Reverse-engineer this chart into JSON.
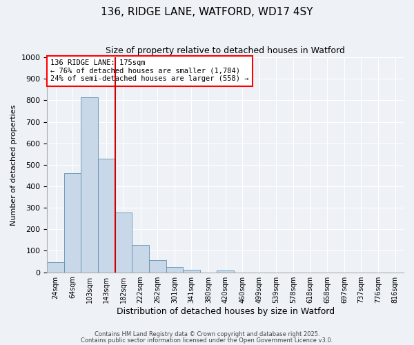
{
  "title": "136, RIDGE LANE, WATFORD, WD17 4SY",
  "subtitle": "Size of property relative to detached houses in Watford",
  "xlabel": "Distribution of detached houses by size in Watford",
  "ylabel": "Number of detached properties",
  "bin_labels": [
    "24sqm",
    "64sqm",
    "103sqm",
    "143sqm",
    "182sqm",
    "222sqm",
    "262sqm",
    "301sqm",
    "341sqm",
    "380sqm",
    "420sqm",
    "460sqm",
    "499sqm",
    "539sqm",
    "578sqm",
    "618sqm",
    "658sqm",
    "697sqm",
    "737sqm",
    "776sqm",
    "816sqm"
  ],
  "bar_values": [
    47,
    462,
    815,
    527,
    278,
    128,
    57,
    25,
    10,
    0,
    7,
    0,
    0,
    0,
    0,
    0,
    0,
    0,
    0,
    0,
    0
  ],
  "bar_color": "#c8d8e8",
  "bar_edge_color": "#6090b0",
  "vline_color": "#cc0000",
  "ylim": [
    0,
    1000
  ],
  "yticks": [
    0,
    100,
    200,
    300,
    400,
    500,
    600,
    700,
    800,
    900,
    1000
  ],
  "annotation_title": "136 RIDGE LANE: 175sqm",
  "annotation_line1": "← 76% of detached houses are smaller (1,784)",
  "annotation_line2": "24% of semi-detached houses are larger (558) →",
  "footnote1": "Contains HM Land Registry data © Crown copyright and database right 2025.",
  "footnote2": "Contains public sector information licensed under the Open Government Licence v3.0.",
  "background_color": "#eef2f7",
  "grid_color": "#ffffff",
  "title_fontsize": 11,
  "subtitle_fontsize": 9,
  "xlabel_fontsize": 9,
  "ylabel_fontsize": 8,
  "tick_fontsize": 7,
  "annotation_fontsize": 7.5
}
